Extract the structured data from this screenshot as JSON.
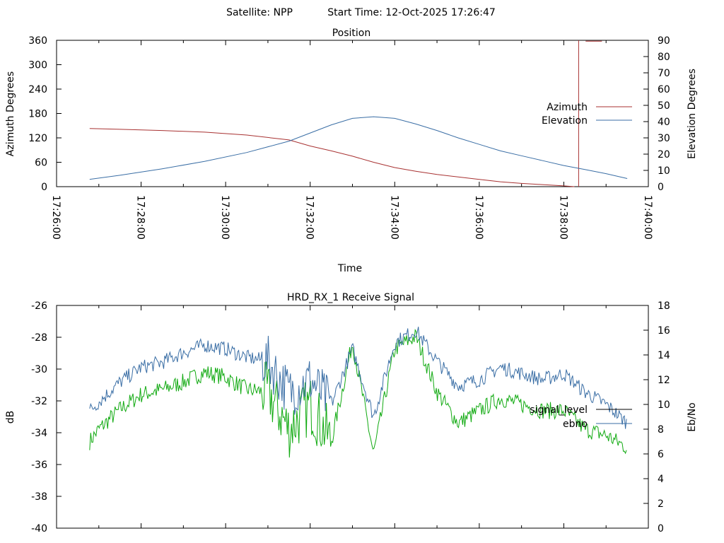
{
  "header": {
    "satellite_label": "Satellite: NPP",
    "start_time_label": "Start Time: 12-Oct-2025 17:26:47"
  },
  "colors": {
    "azimuth": "#a83232",
    "elevation": "#3a6ea5",
    "signal_level": "#000000",
    "ebno_line": "#3a6ea5",
    "green_trace": "#11aa11"
  },
  "chart_data": [
    {
      "type": "line",
      "title": "Position",
      "xlabel": "Time",
      "ylabel": "Azimuth Degrees",
      "y2label": "Elevation Degrees",
      "xlim": [
        "17:26:00",
        "17:40:00"
      ],
      "ylim": [
        0,
        360
      ],
      "y2lim": [
        0,
        90
      ],
      "x_ticks": [
        "17:26:00",
        "17:28:00",
        "17:30:00",
        "17:32:00",
        "17:34:00",
        "17:36:00",
        "17:38:00",
        "17:40:00"
      ],
      "y_ticks": [
        "0",
        "60",
        "120",
        "180",
        "240",
        "300",
        "360"
      ],
      "y2_ticks": [
        "0",
        "10",
        "20",
        "30",
        "40",
        "50",
        "60",
        "70",
        "80",
        "90"
      ],
      "legend": "right",
      "grid": false,
      "series": [
        {
          "name": "Azimuth",
          "axis": "y",
          "x": [
            "17:26:47",
            "17:27:30",
            "17:28:30",
            "17:29:30",
            "17:30:30",
            "17:31:30",
            "17:32:00",
            "17:32:30",
            "17:33:00",
            "17:33:30",
            "17:34:00",
            "17:34:30",
            "17:35:00",
            "17:35:30",
            "17:36:00",
            "17:36:30",
            "17:37:00",
            "17:37:30",
            "17:38:00",
            "17:38:15"
          ],
          "values": [
            143,
            141,
            138,
            134,
            127,
            115,
            100,
            88,
            75,
            60,
            47,
            38,
            30,
            24,
            18,
            12,
            8,
            5,
            2,
            0
          ],
          "wrap": [
            {
              "x": "17:38:21",
              "values": [
                0,
                360
              ]
            },
            {
              "x": "17:38:40",
              "values": [
                358,
                358
              ]
            }
          ]
        },
        {
          "name": "Elevation",
          "axis": "y2",
          "x": [
            "17:26:47",
            "17:27:30",
            "17:28:30",
            "17:29:30",
            "17:30:30",
            "17:31:30",
            "17:32:00",
            "17:32:30",
            "17:33:00",
            "17:33:30",
            "17:34:00",
            "17:34:30",
            "17:35:00",
            "17:35:30",
            "17:36:00",
            "17:36:30",
            "17:37:00",
            "17:37:30",
            "17:38:00",
            "17:38:30",
            "17:39:00",
            "17:39:30"
          ],
          "values": [
            4.5,
            7,
            11,
            15.5,
            21,
            28,
            33,
            38,
            42,
            43,
            42,
            38.5,
            34.5,
            30,
            26,
            22,
            19,
            16,
            13,
            10.5,
            8,
            5
          ]
        }
      ]
    },
    {
      "type": "line",
      "title": "HRD_RX_1 Receive Signal",
      "ylabel": "dB",
      "y2label": "Eb/No",
      "xlim": [
        "17:26:00",
        "17:40:00"
      ],
      "ylim": [
        -40,
        -26
      ],
      "y2lim": [
        0,
        18
      ],
      "y_ticks": [
        "-40",
        "-38",
        "-36",
        "-34",
        "-32",
        "-30",
        "-28",
        "-26"
      ],
      "y2_ticks": [
        "0",
        "2",
        "4",
        "6",
        "8",
        "10",
        "12",
        "14",
        "16",
        "18"
      ],
      "legend": "right",
      "grid": false,
      "series": [
        {
          "name": "signal_level",
          "axis": "y",
          "x": [],
          "values": []
        },
        {
          "name": "ebno",
          "axis": "y2",
          "x": [
            "17:26:47",
            "17:27:00",
            "17:27:30",
            "17:28:00",
            "17:28:30",
            "17:29:00",
            "17:29:30",
            "17:30:00",
            "17:30:30",
            "17:31:00",
            "17:31:30",
            "17:32:00",
            "17:32:30",
            "17:33:00",
            "17:33:30",
            "17:34:00",
            "17:34:30",
            "17:35:00",
            "17:35:30",
            "17:36:00",
            "17:36:30",
            "17:37:00",
            "17:37:30",
            "17:38:00",
            "17:38:30",
            "17:39:00",
            "17:39:30"
          ],
          "values": [
            9.5,
            10.2,
            11.8,
            13,
            13.4,
            14.2,
            14.8,
            14.5,
            13.8,
            13.5,
            11,
            12,
            10,
            14.5,
            9,
            15,
            16,
            13.5,
            11.5,
            12,
            13,
            12.5,
            12,
            12.5,
            11,
            10,
            8.5
          ]
        },
        {
          "axis": "y2",
          "x": [
            "17:26:47",
            "17:27:00",
            "17:27:30",
            "17:28:00",
            "17:28:30",
            "17:29:00",
            "17:29:30",
            "17:30:00",
            "17:30:30",
            "17:31:00",
            "17:31:30",
            "17:32:00",
            "17:32:30",
            "17:33:00",
            "17:33:30",
            "17:34:00",
            "17:34:30",
            "17:35:00",
            "17:35:30",
            "17:36:00",
            "17:36:30",
            "17:37:00",
            "17:37:30",
            "17:38:00",
            "17:38:30",
            "17:39:00",
            "17:39:30"
          ],
          "values": [
            7,
            8,
            9.6,
            10.8,
            11.2,
            11.8,
            12.6,
            12.2,
            11.2,
            11,
            8,
            10,
            7,
            15,
            6,
            14.5,
            15.5,
            11,
            8.5,
            9.5,
            10.5,
            10,
            9.5,
            9.5,
            8,
            7.5,
            6.5
          ]
        }
      ]
    }
  ]
}
